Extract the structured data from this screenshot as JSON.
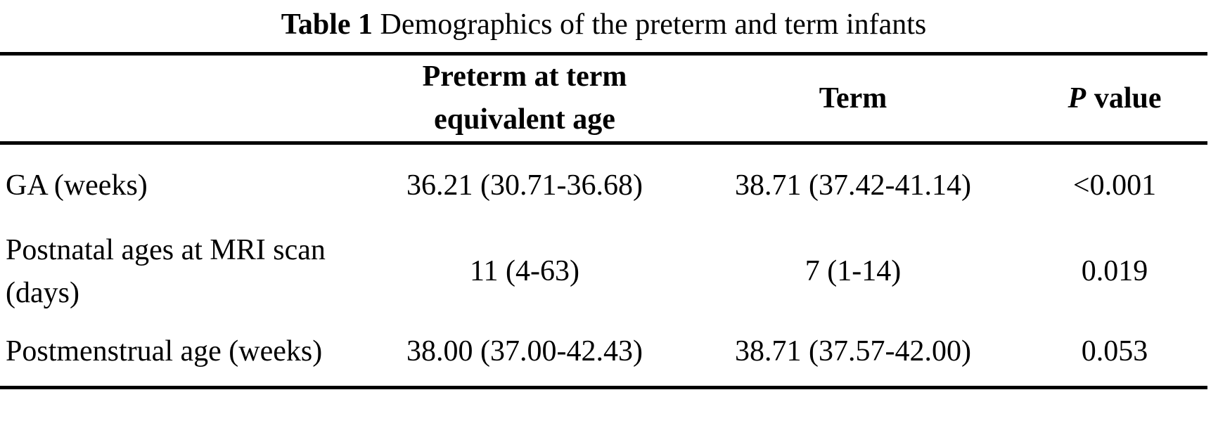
{
  "colors": {
    "text": "#000000",
    "background": "#ffffff",
    "rule": "#000000"
  },
  "caption": {
    "label": "Table 1",
    "text": "Demographics of the preterm and term infants"
  },
  "table": {
    "header": {
      "stub": "",
      "preterm_line1": "Preterm at term",
      "preterm_line2": "equivalent age",
      "term": "Term",
      "p_symbol": "P",
      "p_word": "value"
    },
    "rows": [
      {
        "label": "GA (weeks)",
        "preterm": "36.21 (30.71-36.68)",
        "term": "38.71 (37.42-41.14)",
        "p_value": "<0.001"
      },
      {
        "label_line1": "Postnatal ages at MRI scan",
        "label_line2": "(days)",
        "preterm": "11 (4-63)",
        "term": "7 (1-14)",
        "p_value": "0.019"
      },
      {
        "label": "Postmenstrual age (weeks)",
        "preterm": "38.00 (37.00-42.43)",
        "term": "38.71 (37.57-42.00)",
        "p_value": "0.053"
      }
    ]
  }
}
